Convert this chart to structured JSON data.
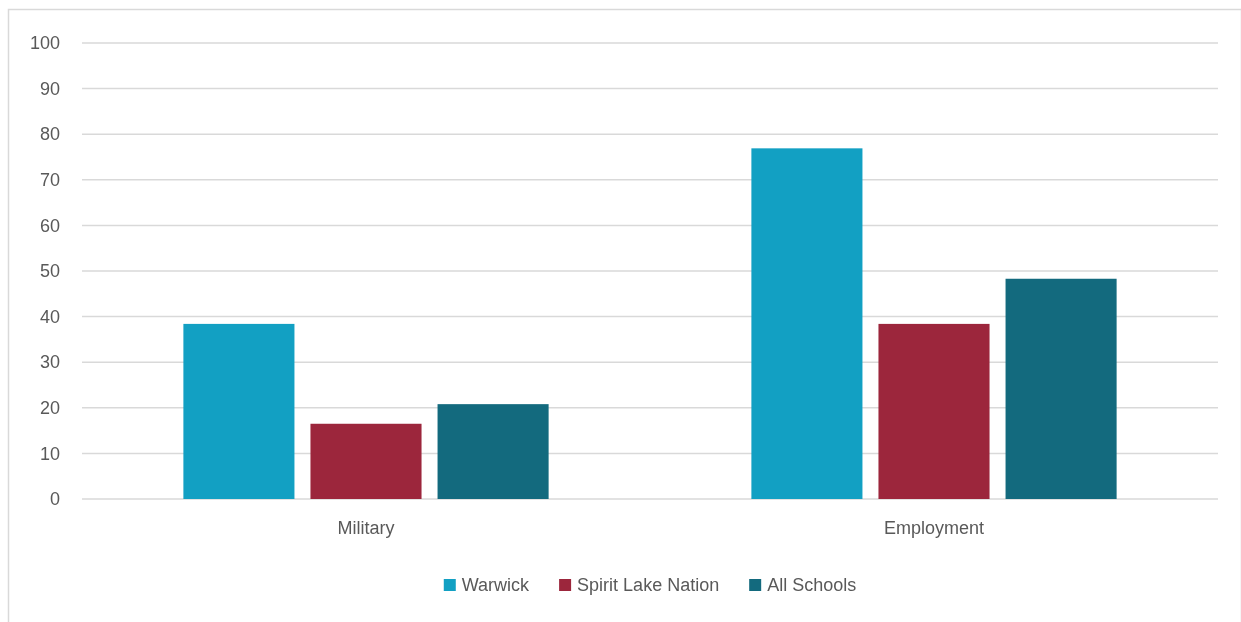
{
  "chart_data": {
    "type": "bar",
    "categories": [
      "Military",
      "Employment"
    ],
    "series": [
      {
        "name": "Warwick",
        "color": "#12a0c3",
        "values": [
          38.4,
          76.9
        ]
      },
      {
        "name": "Spirit Lake Nation",
        "color": "#9c263c",
        "values": [
          16.5,
          38.4
        ]
      },
      {
        "name": "All Schools",
        "color": "#136a7e",
        "values": [
          20.8,
          48.3
        ]
      }
    ],
    "ylim": [
      0,
      100
    ],
    "yticks": [
      0,
      10,
      20,
      30,
      40,
      50,
      60,
      70,
      80,
      90,
      100
    ],
    "grid": "y",
    "legend": "bottom"
  }
}
